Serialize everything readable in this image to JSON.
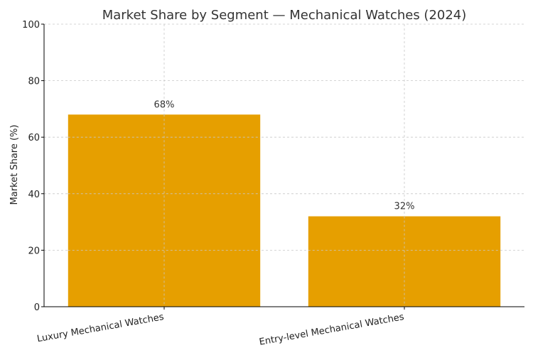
{
  "chart_data": {
    "type": "bar",
    "title": "Market Share by Segment — Mechanical Watches (2024)",
    "xlabel": "",
    "ylabel": "Market Share (%)",
    "categories": [
      "Luxury Mechanical Watches",
      "Entry-level Mechanical Watches"
    ],
    "values": [
      68,
      32
    ],
    "data_labels": [
      "68%",
      "32%"
    ],
    "ylim": [
      0,
      100
    ],
    "yticks": [
      0,
      20,
      40,
      60,
      80,
      100
    ],
    "grid": true,
    "bar_color": "#E69F00"
  }
}
